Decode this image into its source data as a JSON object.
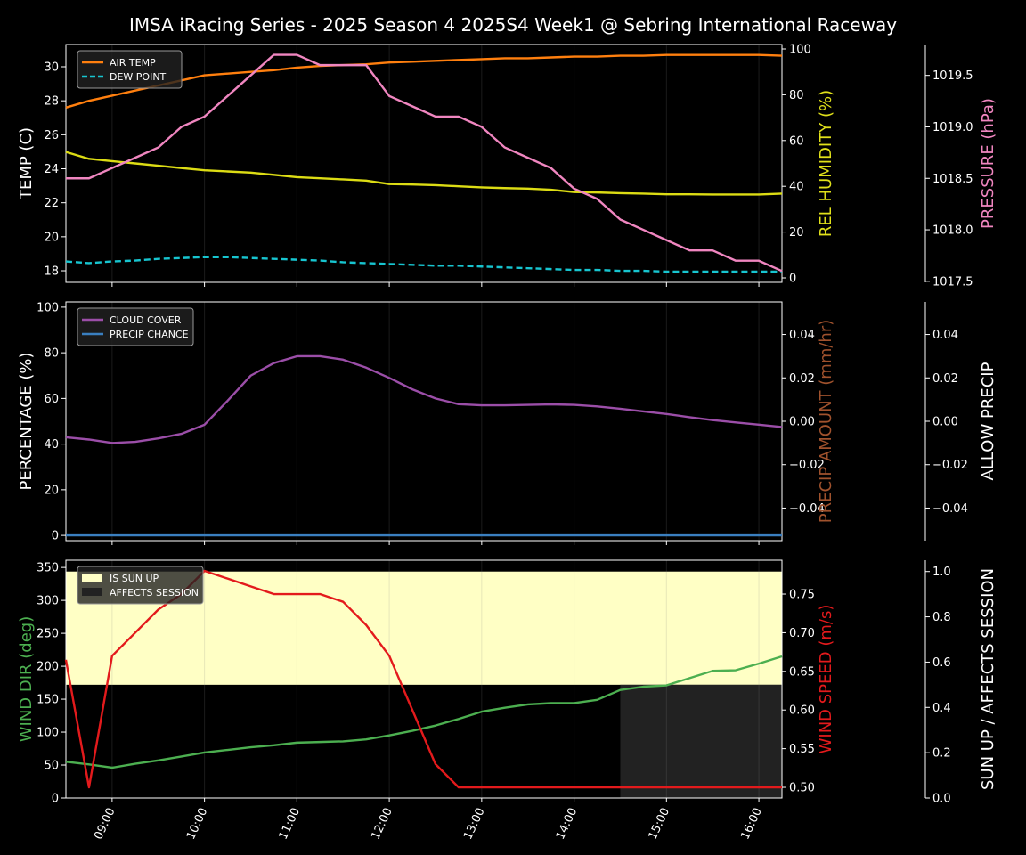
{
  "chart_data": {
    "type": "line",
    "title": "IMSA iRacing Series - 2025 Season 4 2025S4 Week1 @ Sebring International Raceway",
    "x": [
      "08:30",
      "08:45",
      "09:00",
      "09:15",
      "09:30",
      "09:45",
      "10:00",
      "10:15",
      "10:30",
      "10:45",
      "11:00",
      "11:15",
      "11:30",
      "11:45",
      "12:00",
      "12:15",
      "12:30",
      "12:45",
      "13:00",
      "13:15",
      "13:30",
      "13:45",
      "14:00",
      "14:15",
      "14:30",
      "14:45",
      "15:00",
      "15:15",
      "15:30",
      "15:45",
      "16:00",
      "16:15"
    ],
    "xlim": [
      "08:30",
      "16:15"
    ],
    "x_tick_labels": [
      "09:00",
      "10:00",
      "11:00",
      "12:00",
      "13:00",
      "14:00",
      "15:00",
      "16:00"
    ],
    "grid": "vertical at hour ticks",
    "panels": [
      {
        "legend_placement": "top-left",
        "axes": [
          {
            "side": "left",
            "label": "TEMP (C)",
            "color": "#ffffff",
            "ylim": [
              17.32,
              31.31
            ],
            "ticks": [
              18,
              20,
              22,
              24,
              26,
              28,
              30
            ]
          },
          {
            "side": "right",
            "label": "REL HUMIDITY (%)",
            "color": "#e0e01a",
            "ylim": [
              -1.95,
              101.95
            ],
            "ticks": [
              0,
              20,
              40,
              60,
              80,
              100
            ]
          },
          {
            "side": "far-right",
            "label": "PRESSURE (hPa)",
            "color": "#f086c0",
            "ylim": [
              1017.49,
              1019.8
            ],
            "ticks": [
              "1017.5",
              "1018.0",
              "1018.5",
              "1019.0",
              "1019.5"
            ]
          }
        ],
        "series": [
          {
            "name": "AIR TEMP",
            "axis": 0,
            "color": "#ff7f0e",
            "dash": false,
            "legend": true,
            "values": [
              27.6,
              28.0,
              28.3,
              28.6,
              28.9,
              29.2,
              29.5,
              29.6,
              29.7,
              29.8,
              29.95,
              30.05,
              30.1,
              30.15,
              30.25,
              30.3,
              30.35,
              30.4,
              30.45,
              30.5,
              30.5,
              30.55,
              30.6,
              30.6,
              30.65,
              30.65,
              30.7,
              30.7,
              30.7,
              30.7,
              30.7,
              30.65
            ]
          },
          {
            "name": "DEW POINT",
            "axis": 0,
            "color": "#17c5d0",
            "dash": true,
            "legend": true,
            "values": [
              18.55,
              18.45,
              18.55,
              18.6,
              18.7,
              18.75,
              18.8,
              18.8,
              18.75,
              18.7,
              18.65,
              18.6,
              18.5,
              18.45,
              18.4,
              18.35,
              18.3,
              18.3,
              18.25,
              18.2,
              18.15,
              18.1,
              18.05,
              18.05,
              18.0,
              18.0,
              17.95,
              17.95,
              17.95,
              17.95,
              17.95,
              17.95
            ]
          },
          {
            "axis": 1,
            "color": "#dcdc14",
            "dash": false,
            "legend": false,
            "values": [
              55,
              52,
              51,
              50,
              49,
              48,
              47,
              46.5,
              46,
              45,
              44,
              43.5,
              43,
              42.5,
              41,
              40.8,
              40.5,
              40,
              39.5,
              39.2,
              39,
              38.5,
              37.5,
              37.3,
              37,
              36.8,
              36.5,
              36.5,
              36.4,
              36.4,
              36.4,
              36.8
            ]
          },
          {
            "axis": 2,
            "color": "#f086c0",
            "dash": false,
            "legend": false,
            "values": [
              1018.5,
              1018.5,
              1018.6,
              1018.7,
              1018.8,
              1019.0,
              1019.1,
              1019.3,
              1019.5,
              1019.7,
              1019.7,
              1019.6,
              1019.6,
              1019.6,
              1019.3,
              1019.2,
              1019.1,
              1019.1,
              1019.0,
              1018.8,
              1018.7,
              1018.6,
              1018.4,
              1018.3,
              1018.1,
              1018.0,
              1017.9,
              1017.8,
              1017.8,
              1017.7,
              1017.7,
              1017.6
            ]
          }
        ]
      },
      {
        "legend_placement": "top-left",
        "axes": [
          {
            "side": "left",
            "label": "PERCENTAGE (%)",
            "color": "#ffffff",
            "ylim": [
              -2.3,
              102.3
            ],
            "ticks": [
              0,
              20,
              40,
              60,
              80,
              100
            ]
          },
          {
            "side": "right",
            "label": "PRECIP AMOUNT (mm/hr)",
            "color": "#a0522d",
            "ylim": [
              -0.055,
              0.055
            ],
            "ticks": [
              "−0.04",
              "−0.02",
              "0.00",
              "0.02",
              "0.04"
            ]
          },
          {
            "side": "far-right",
            "label": "ALLOW PRECIP",
            "color": "#ffffff",
            "ylim": [
              -0.055,
              0.055
            ],
            "ticks": [
              "−0.04",
              "−0.02",
              "0.00",
              "0.02",
              "0.04"
            ]
          }
        ],
        "series": [
          {
            "name": "CLOUD COVER",
            "axis": 0,
            "color": "#9b4ea8",
            "dash": false,
            "legend": true,
            "values": [
              43,
              42,
              40.5,
              41,
              42.5,
              44.5,
              48.5,
              59,
              70,
              75.5,
              78.5,
              78.5,
              77,
              73.5,
              69,
              64,
              60,
              57.5,
              57,
              57,
              57.2,
              57.4,
              57.2,
              56.5,
              55.5,
              54.3,
              53.2,
              51.8,
              50.5,
              49.5,
              48.5,
              47.5
            ]
          },
          {
            "name": "PRECIP CHANCE",
            "axis": 0,
            "color": "#3a7fc0",
            "dash": false,
            "legend": true,
            "values": [
              0,
              0,
              0,
              0,
              0,
              0,
              0,
              0,
              0,
              0,
              0,
              0,
              0,
              0,
              0,
              0,
              0,
              0,
              0,
              0,
              0,
              0,
              0,
              0,
              0,
              0,
              0,
              0,
              0,
              0,
              0,
              0
            ]
          }
        ]
      },
      {
        "legend_placement": "top-left",
        "axes": [
          {
            "side": "left",
            "label": "WIND DIR (deg)",
            "color": "#4caf50",
            "ylim": [
              0,
              361
            ],
            "ticks": [
              0,
              50,
              100,
              150,
              200,
              250,
              300,
              350
            ]
          },
          {
            "side": "right",
            "label": "WIND SPEED (m/s)",
            "color": "#e31a1c",
            "ylim": [
              0.4862,
              0.7938
            ],
            "ticks": [
              "0.50",
              "0.55",
              "0.60",
              "0.65",
              "0.70",
              "0.75"
            ]
          },
          {
            "side": "far-right",
            "label": "SUN UP / AFFECTS SESSION",
            "color": "#ffffff",
            "ylim": [
              0,
              1.05
            ],
            "ticks": [
              "0.0",
              "0.2",
              "0.4",
              "0.6",
              "0.8",
              "1.0"
            ]
          }
        ],
        "bands": [
          {
            "name": "IS SUN UP",
            "color": "#ffffc5",
            "from": "08:30",
            "to": "16:15",
            "y": [
              0.5,
              1.0
            ]
          },
          {
            "name": "AFFECTS SESSION",
            "color": "#222222",
            "from": "14:30",
            "to": "16:15",
            "y": [
              0,
              0.5
            ]
          }
        ],
        "series": [
          {
            "axis": 0,
            "color": "#4caf50",
            "dash": false,
            "legend": false,
            "values": [
              55,
              51,
              46,
              52,
              57,
              63,
              69,
              73,
              77,
              80,
              84,
              85,
              86,
              89,
              95,
              102,
              110,
              120,
              131,
              137,
              142,
              144,
              144,
              149,
              164,
              169,
              171,
              182,
              193,
              194,
              204,
              215
            ]
          },
          {
            "axis": 1,
            "color": "#e31a1c",
            "dash": false,
            "legend": false,
            "values": [
              0.665,
              0.5,
              0.67,
              0.7,
              0.73,
              0.75,
              0.78,
              0.77,
              0.76,
              0.75,
              0.75,
              0.75,
              0.74,
              0.71,
              0.67,
              0.6,
              0.53,
              0.5,
              0.5,
              0.5,
              0.5,
              0.5,
              0.5,
              0.5,
              0.5,
              0.5,
              0.5,
              0.5,
              0.5,
              0.5,
              0.5,
              0.5
            ]
          }
        ]
      }
    ]
  }
}
